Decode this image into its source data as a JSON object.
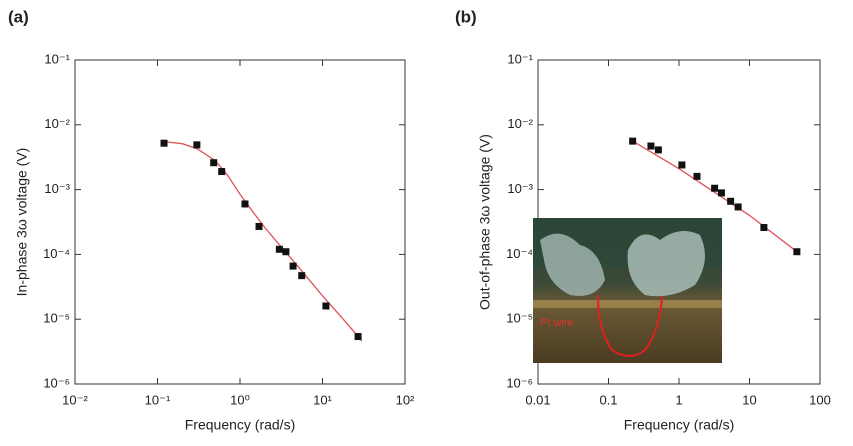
{
  "chart_data": [
    {
      "type": "scatter",
      "label": "(a)",
      "xlabel": "Frequency (rad/s)",
      "ylabel": "In-phase 3ω voltage (V)",
      "log_x": true,
      "log_y": true,
      "xlim": [
        0.01,
        100
      ],
      "xticks": [
        {
          "value": 0.01,
          "label": "10⁻²"
        },
        {
          "value": 0.1,
          "label": "10⁻¹"
        },
        {
          "value": 1,
          "label": "10⁰"
        },
        {
          "value": 10,
          "label": "10¹"
        },
        {
          "value": 100,
          "label": "10²"
        }
      ],
      "ylim": [
        1e-06,
        0.1
      ],
      "yticks": [
        {
          "value": 1e-06,
          "label": "10⁻⁶"
        },
        {
          "value": 1e-05,
          "label": "10⁻⁵"
        },
        {
          "value": 0.0001,
          "label": "10⁻⁴"
        },
        {
          "value": 0.001,
          "label": "10⁻³"
        },
        {
          "value": 0.01,
          "label": "10⁻²"
        },
        {
          "value": 0.1,
          "label": "10⁻¹"
        }
      ],
      "x": [
        0.12,
        0.3,
        0.48,
        0.6,
        1.15,
        1.7,
        3.0,
        3.6,
        4.4,
        5.6,
        11,
        27
      ],
      "values": [
        0.0052,
        0.0049,
        0.0026,
        0.0019,
        0.0006,
        0.00027,
        0.00012,
        0.00011,
        6.6e-05,
        4.7e-05,
        1.6e-05,
        5.4e-06
      ],
      "color": "#111111",
      "fit": {
        "x": [
          0.12,
          0.2,
          0.3,
          0.5,
          0.7,
          1,
          1.5,
          2,
          3,
          5,
          10,
          20,
          30
        ],
        "values": [
          0.0055,
          0.0051,
          0.0043,
          0.0028,
          0.0017,
          0.00085,
          0.00042,
          0.00026,
          0.00014,
          6.6e-05,
          2.3e-05,
          8.5e-06,
          4.6e-06
        ],
        "color": "#e0505a"
      }
    },
    {
      "type": "scatter",
      "label": "(b)",
      "xlabel": "Frequency (rad/s)",
      "ylabel": "Out-of-phase 3ω voltage (V)",
      "log_x": true,
      "log_y": true,
      "xlim": [
        0.01,
        100
      ],
      "xticks": [
        0.01,
        0.1,
        1,
        10,
        100
      ],
      "ylim": [
        1e-06,
        0.1
      ],
      "yticks": [
        {
          "value": 1e-06,
          "label": "10⁻⁶"
        },
        {
          "value": 1e-05,
          "label": "10⁻⁵"
        },
        {
          "value": 0.0001,
          "label": "10⁻⁴"
        },
        {
          "value": 0.001,
          "label": "10⁻³"
        },
        {
          "value": 0.01,
          "label": "10⁻²"
        },
        {
          "value": 0.1,
          "label": "10⁻¹"
        }
      ],
      "x": [
        0.22,
        0.4,
        0.51,
        1.1,
        1.8,
        3.2,
        4.0,
        5.4,
        6.9,
        16,
        47
      ],
      "values": [
        0.0056,
        0.0047,
        0.0041,
        0.0024,
        0.0016,
        0.00105,
        0.00089,
        0.00066,
        0.00054,
        0.00026,
        0.00011
      ],
      "color": "#111111",
      "fit": {
        "x": [
          0.22,
          1,
          10,
          47
        ],
        "values": [
          0.0056,
          0.0021,
          0.0004,
          0.00011
        ],
        "color": "#e0505a"
      },
      "annotation": "Pt wire"
    }
  ]
}
